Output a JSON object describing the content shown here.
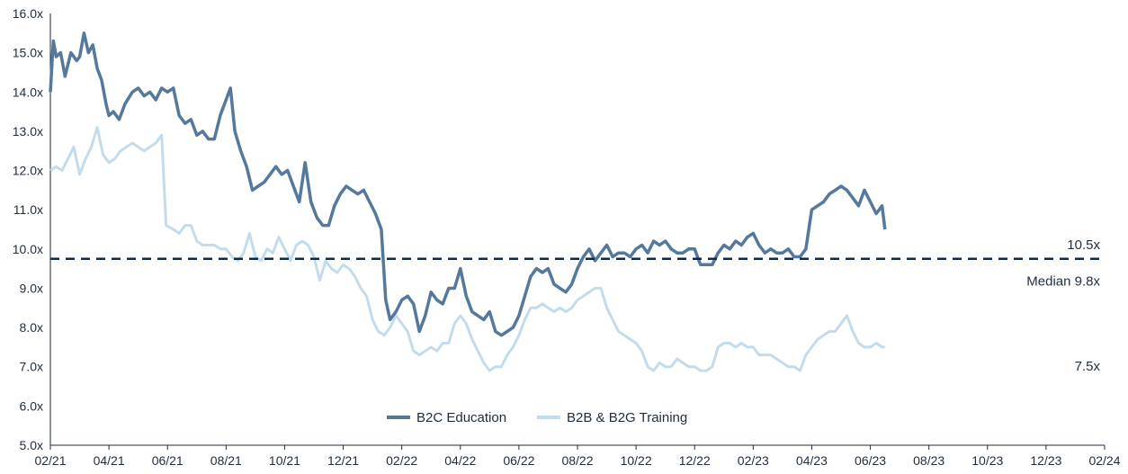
{
  "chart_data": {
    "type": "line",
    "title": "",
    "xlabel": "",
    "ylabel": "",
    "ylim": [
      5.0,
      16.0
    ],
    "y_ticks": [
      "5.0x",
      "6.0x",
      "7.0x",
      "8.0x",
      "9.0x",
      "10.0x",
      "11.0x",
      "12.0x",
      "13.0x",
      "14.0x",
      "15.0x",
      "16.0x"
    ],
    "x_ticks": [
      "02/21",
      "04/21",
      "06/21",
      "08/21",
      "10/21",
      "12/21",
      "02/22",
      "04/22",
      "06/22",
      "08/22",
      "10/22",
      "12/22",
      "02/23",
      "04/23",
      "06/23",
      "08/23",
      "10/23",
      "12/23",
      "02/24"
    ],
    "grid": false,
    "legend_position": "bottom-center",
    "colors": {
      "b2c": "#54799d",
      "b2b": "#c3dcec",
      "median": "#0e2a47",
      "axis": "#1f2d3d"
    },
    "median": {
      "value": 9.75,
      "label": "Median 9.8x"
    },
    "end_labels": {
      "b2c": "10.5x",
      "b2b": "7.5x"
    },
    "series": [
      {
        "key": "b2c",
        "name": "B2C Education",
        "points": [
          [
            0,
            14.0
          ],
          [
            0.1,
            15.3
          ],
          [
            0.2,
            14.9
          ],
          [
            0.35,
            15.0
          ],
          [
            0.5,
            14.4
          ],
          [
            0.7,
            15.0
          ],
          [
            0.9,
            14.8
          ],
          [
            1.0,
            14.9
          ],
          [
            1.15,
            15.5
          ],
          [
            1.3,
            15.0
          ],
          [
            1.45,
            15.2
          ],
          [
            1.6,
            14.6
          ],
          [
            1.75,
            14.3
          ],
          [
            1.9,
            13.7
          ],
          [
            2.0,
            13.4
          ],
          [
            2.15,
            13.5
          ],
          [
            2.35,
            13.3
          ],
          [
            2.55,
            13.7
          ],
          [
            2.8,
            14.0
          ],
          [
            3.0,
            14.1
          ],
          [
            3.2,
            13.9
          ],
          [
            3.4,
            14.0
          ],
          [
            3.6,
            13.8
          ],
          [
            3.8,
            14.1
          ],
          [
            4.0,
            14.0
          ],
          [
            4.2,
            14.1
          ],
          [
            4.4,
            13.4
          ],
          [
            4.6,
            13.2
          ],
          [
            4.8,
            13.3
          ],
          [
            5.0,
            12.9
          ],
          [
            5.2,
            13.0
          ],
          [
            5.4,
            12.8
          ],
          [
            5.6,
            12.8
          ],
          [
            5.8,
            13.4
          ],
          [
            6.0,
            13.8
          ],
          [
            6.15,
            14.1
          ],
          [
            6.3,
            13.0
          ],
          [
            6.5,
            12.5
          ],
          [
            6.7,
            12.1
          ],
          [
            6.9,
            11.5
          ],
          [
            7.1,
            11.6
          ],
          [
            7.3,
            11.7
          ],
          [
            7.5,
            11.9
          ],
          [
            7.7,
            12.1
          ],
          [
            7.9,
            11.9
          ],
          [
            8.1,
            12.0
          ],
          [
            8.3,
            11.6
          ],
          [
            8.5,
            11.2
          ],
          [
            8.7,
            12.2
          ],
          [
            8.9,
            11.2
          ],
          [
            9.1,
            10.8
          ],
          [
            9.3,
            10.6
          ],
          [
            9.5,
            10.6
          ],
          [
            9.7,
            11.1
          ],
          [
            9.9,
            11.4
          ],
          [
            10.1,
            11.6
          ],
          [
            10.3,
            11.5
          ],
          [
            10.5,
            11.4
          ],
          [
            10.7,
            11.5
          ],
          [
            10.9,
            11.2
          ],
          [
            11.1,
            10.9
          ],
          [
            11.3,
            10.5
          ],
          [
            11.45,
            8.7
          ],
          [
            11.6,
            8.2
          ],
          [
            11.8,
            8.4
          ],
          [
            12.0,
            8.7
          ],
          [
            12.2,
            8.8
          ],
          [
            12.4,
            8.6
          ],
          [
            12.6,
            7.9
          ],
          [
            12.8,
            8.3
          ],
          [
            13.0,
            8.9
          ],
          [
            13.2,
            8.7
          ],
          [
            13.4,
            8.6
          ],
          [
            13.6,
            9.0
          ],
          [
            13.8,
            9.0
          ],
          [
            14.0,
            9.5
          ],
          [
            14.2,
            8.8
          ],
          [
            14.4,
            8.4
          ],
          [
            14.6,
            8.3
          ],
          [
            14.8,
            8.2
          ],
          [
            15.0,
            8.4
          ],
          [
            15.2,
            7.9
          ],
          [
            15.4,
            7.8
          ],
          [
            15.6,
            7.9
          ],
          [
            15.8,
            8.0
          ],
          [
            16.0,
            8.3
          ],
          [
            16.2,
            8.8
          ],
          [
            16.4,
            9.3
          ],
          [
            16.6,
            9.5
          ],
          [
            16.8,
            9.4
          ],
          [
            17.0,
            9.5
          ],
          [
            17.2,
            9.1
          ],
          [
            17.4,
            9.0
          ],
          [
            17.6,
            8.9
          ],
          [
            17.8,
            9.1
          ],
          [
            18.0,
            9.5
          ],
          [
            18.2,
            9.8
          ],
          [
            18.4,
            10.0
          ],
          [
            18.6,
            9.7
          ],
          [
            18.8,
            9.9
          ],
          [
            19.0,
            10.1
          ],
          [
            19.2,
            9.8
          ],
          [
            19.4,
            9.9
          ],
          [
            19.6,
            9.9
          ],
          [
            19.8,
            9.8
          ],
          [
            20.0,
            10.0
          ],
          [
            20.2,
            10.1
          ],
          [
            20.4,
            9.9
          ],
          [
            20.6,
            10.2
          ],
          [
            20.8,
            10.1
          ],
          [
            21.0,
            10.2
          ],
          [
            21.2,
            10.0
          ],
          [
            21.4,
            9.9
          ],
          [
            21.6,
            9.9
          ],
          [
            21.8,
            10.0
          ],
          [
            22.0,
            10.0
          ],
          [
            22.2,
            9.6
          ],
          [
            22.4,
            9.6
          ],
          [
            22.6,
            9.6
          ],
          [
            22.8,
            9.9
          ],
          [
            23.0,
            10.1
          ],
          [
            23.2,
            10.0
          ],
          [
            23.4,
            10.2
          ],
          [
            23.6,
            10.1
          ],
          [
            23.8,
            10.3
          ],
          [
            24.0,
            10.4
          ],
          [
            24.2,
            10.1
          ],
          [
            24.4,
            9.9
          ],
          [
            24.6,
            10.0
          ],
          [
            24.8,
            9.9
          ],
          [
            25.0,
            9.9
          ],
          [
            25.2,
            10.0
          ],
          [
            25.4,
            9.8
          ],
          [
            25.6,
            9.8
          ],
          [
            25.8,
            10.0
          ],
          [
            26.0,
            11.0
          ],
          [
            26.2,
            11.1
          ],
          [
            26.4,
            11.2
          ],
          [
            26.6,
            11.4
          ],
          [
            26.8,
            11.5
          ],
          [
            27.0,
            11.6
          ],
          [
            27.2,
            11.5
          ],
          [
            27.4,
            11.3
          ],
          [
            27.6,
            11.1
          ],
          [
            27.8,
            11.5
          ],
          [
            28.0,
            11.2
          ],
          [
            28.2,
            10.9
          ],
          [
            28.4,
            11.1
          ],
          [
            28.5,
            10.5
          ]
        ]
      },
      {
        "key": "b2b",
        "name": "B2B & B2G Training",
        "points": [
          [
            0,
            12.0
          ],
          [
            0.2,
            12.1
          ],
          [
            0.4,
            12.0
          ],
          [
            0.6,
            12.3
          ],
          [
            0.8,
            12.6
          ],
          [
            1.0,
            11.9
          ],
          [
            1.2,
            12.3
          ],
          [
            1.4,
            12.6
          ],
          [
            1.6,
            13.1
          ],
          [
            1.8,
            12.4
          ],
          [
            2.0,
            12.2
          ],
          [
            2.2,
            12.3
          ],
          [
            2.4,
            12.5
          ],
          [
            2.6,
            12.6
          ],
          [
            2.8,
            12.7
          ],
          [
            3.0,
            12.6
          ],
          [
            3.2,
            12.5
          ],
          [
            3.4,
            12.6
          ],
          [
            3.6,
            12.7
          ],
          [
            3.8,
            12.9
          ],
          [
            3.95,
            10.6
          ],
          [
            4.2,
            10.5
          ],
          [
            4.4,
            10.4
          ],
          [
            4.6,
            10.6
          ],
          [
            4.8,
            10.6
          ],
          [
            5.0,
            10.2
          ],
          [
            5.2,
            10.1
          ],
          [
            5.4,
            10.1
          ],
          [
            5.6,
            10.1
          ],
          [
            5.8,
            10.0
          ],
          [
            6.0,
            10.0
          ],
          [
            6.2,
            9.8
          ],
          [
            6.4,
            9.7
          ],
          [
            6.6,
            9.9
          ],
          [
            6.8,
            10.4
          ],
          [
            7.0,
            9.8
          ],
          [
            7.2,
            9.7
          ],
          [
            7.4,
            10.0
          ],
          [
            7.6,
            9.9
          ],
          [
            7.8,
            10.3
          ],
          [
            8.0,
            10.0
          ],
          [
            8.2,
            9.7
          ],
          [
            8.4,
            10.1
          ],
          [
            8.6,
            10.2
          ],
          [
            8.8,
            10.1
          ],
          [
            9.0,
            9.8
          ],
          [
            9.2,
            9.2
          ],
          [
            9.4,
            9.7
          ],
          [
            9.6,
            9.5
          ],
          [
            9.8,
            9.4
          ],
          [
            10.0,
            9.6
          ],
          [
            10.2,
            9.5
          ],
          [
            10.4,
            9.3
          ],
          [
            10.6,
            9.0
          ],
          [
            10.8,
            8.8
          ],
          [
            11.0,
            8.2
          ],
          [
            11.2,
            7.9
          ],
          [
            11.4,
            7.8
          ],
          [
            11.6,
            8.0
          ],
          [
            11.8,
            8.3
          ],
          [
            12.0,
            8.1
          ],
          [
            12.2,
            7.9
          ],
          [
            12.4,
            7.4
          ],
          [
            12.6,
            7.3
          ],
          [
            12.8,
            7.4
          ],
          [
            13.0,
            7.5
          ],
          [
            13.2,
            7.4
          ],
          [
            13.4,
            7.6
          ],
          [
            13.6,
            7.6
          ],
          [
            13.8,
            8.1
          ],
          [
            14.0,
            8.3
          ],
          [
            14.2,
            8.1
          ],
          [
            14.4,
            7.7
          ],
          [
            14.6,
            7.4
          ],
          [
            14.8,
            7.1
          ],
          [
            15.0,
            6.9
          ],
          [
            15.2,
            7.0
          ],
          [
            15.4,
            7.0
          ],
          [
            15.6,
            7.3
          ],
          [
            15.8,
            7.5
          ],
          [
            16.0,
            7.8
          ],
          [
            16.2,
            8.2
          ],
          [
            16.4,
            8.5
          ],
          [
            16.6,
            8.5
          ],
          [
            16.8,
            8.6
          ],
          [
            17.0,
            8.5
          ],
          [
            17.2,
            8.4
          ],
          [
            17.4,
            8.5
          ],
          [
            17.6,
            8.4
          ],
          [
            17.8,
            8.5
          ],
          [
            18.0,
            8.7
          ],
          [
            18.2,
            8.8
          ],
          [
            18.4,
            8.9
          ],
          [
            18.6,
            9.0
          ],
          [
            18.8,
            9.0
          ],
          [
            19.0,
            8.5
          ],
          [
            19.2,
            8.2
          ],
          [
            19.4,
            7.9
          ],
          [
            19.6,
            7.8
          ],
          [
            19.8,
            7.7
          ],
          [
            20.0,
            7.6
          ],
          [
            20.2,
            7.4
          ],
          [
            20.4,
            7.0
          ],
          [
            20.6,
            6.9
          ],
          [
            20.8,
            7.1
          ],
          [
            21.0,
            7.0
          ],
          [
            21.2,
            7.0
          ],
          [
            21.4,
            7.2
          ],
          [
            21.6,
            7.1
          ],
          [
            21.8,
            7.0
          ],
          [
            22.0,
            7.0
          ],
          [
            22.2,
            6.9
          ],
          [
            22.4,
            6.9
          ],
          [
            22.6,
            7.0
          ],
          [
            22.8,
            7.5
          ],
          [
            23.0,
            7.6
          ],
          [
            23.2,
            7.6
          ],
          [
            23.4,
            7.5
          ],
          [
            23.6,
            7.6
          ],
          [
            23.8,
            7.5
          ],
          [
            24.0,
            7.5
          ],
          [
            24.2,
            7.3
          ],
          [
            24.4,
            7.3
          ],
          [
            24.6,
            7.3
          ],
          [
            24.8,
            7.2
          ],
          [
            25.0,
            7.1
          ],
          [
            25.2,
            7.0
          ],
          [
            25.4,
            7.0
          ],
          [
            25.6,
            6.9
          ],
          [
            25.8,
            7.3
          ],
          [
            26.0,
            7.5
          ],
          [
            26.2,
            7.7
          ],
          [
            26.4,
            7.8
          ],
          [
            26.6,
            7.9
          ],
          [
            26.8,
            7.9
          ],
          [
            27.0,
            8.1
          ],
          [
            27.2,
            8.3
          ],
          [
            27.4,
            7.9
          ],
          [
            27.6,
            7.6
          ],
          [
            27.8,
            7.5
          ],
          [
            28.0,
            7.5
          ],
          [
            28.2,
            7.6
          ],
          [
            28.4,
            7.5
          ],
          [
            28.5,
            7.5
          ]
        ]
      }
    ]
  }
}
